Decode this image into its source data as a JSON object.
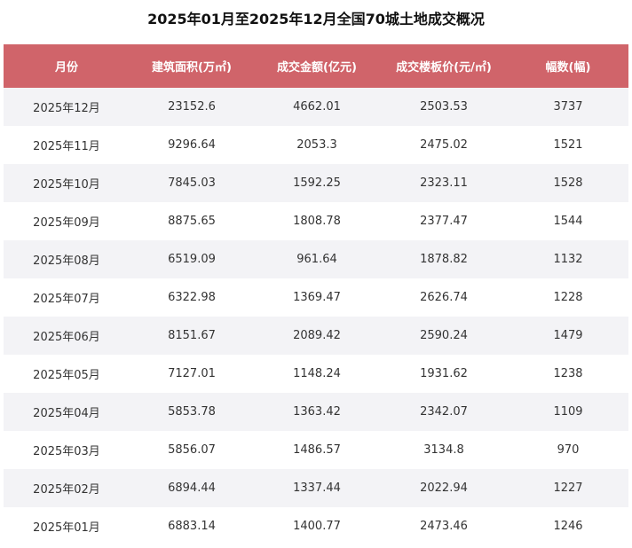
{
  "title": "2025年01月至2025年12月全国70城土地成交概况",
  "colors": {
    "header_bg": "#d0646a",
    "header_text": "#ffffff",
    "row_stripe": "#f3f3f6",
    "row_plain": "#ffffff",
    "text": "#333333"
  },
  "chart_data": {
    "type": "table",
    "title": "2025年01月至2025年12月全国70城土地成交概况",
    "columns": [
      "月份",
      "建筑面积(万㎡)",
      "成交金额(亿元)",
      "成交楼板价(元/㎡)",
      "幅数(幅)"
    ],
    "rows": [
      [
        "2025年12月",
        "23152.6",
        "4662.01",
        "2503.53",
        "3737"
      ],
      [
        "2025年11月",
        "9296.64",
        "2053.3",
        "2475.02",
        "1521"
      ],
      [
        "2025年10月",
        "7845.03",
        "1592.25",
        "2323.11",
        "1528"
      ],
      [
        "2025年09月",
        "8875.65",
        "1808.78",
        "2377.47",
        "1544"
      ],
      [
        "2025年08月",
        "6519.09",
        "961.64",
        "1878.82",
        "1132"
      ],
      [
        "2025年07月",
        "6322.98",
        "1369.47",
        "2626.74",
        "1228"
      ],
      [
        "2025年06月",
        "8151.67",
        "2089.42",
        "2590.24",
        "1479"
      ],
      [
        "2025年05月",
        "7127.01",
        "1148.24",
        "1931.62",
        "1238"
      ],
      [
        "2025年04月",
        "5853.78",
        "1363.42",
        "2342.07",
        "1109"
      ],
      [
        "2025年03月",
        "5856.07",
        "1486.57",
        "3134.8",
        "970"
      ],
      [
        "2025年02月",
        "6894.44",
        "1337.44",
        "2022.94",
        "1227"
      ],
      [
        "2025年01月",
        "6883.14",
        "1400.77",
        "2473.46",
        "1246"
      ]
    ]
  }
}
